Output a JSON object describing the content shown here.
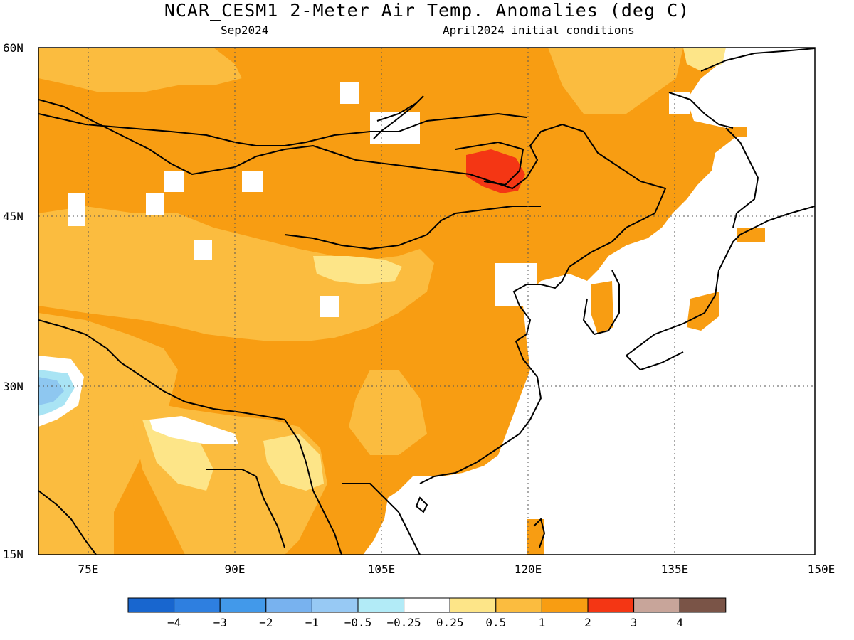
{
  "header": {
    "title": "NCAR_CESM1 2-Meter Air Temp. Anomalies (deg C)",
    "subtitle_left": "Sep2024",
    "subtitle_right": "April2024 initial conditions"
  },
  "map": {
    "lon_range": [
      70,
      150
    ],
    "lat_range": [
      15,
      60
    ],
    "lat_labels": [
      "15N",
      "30N",
      "45N",
      "60N"
    ],
    "lon_labels": [
      "75E",
      "90E",
      "105E",
      "120E",
      "135E",
      "150E"
    ],
    "fill_colors": {
      "light": "#fde588",
      "mid": "#fbbc3f",
      "strong": "#f89d12",
      "hot": "#f43614",
      "white": "#ffffff",
      "cool_light": "#a9e4f4",
      "cool": "#8ec7f0"
    }
  },
  "colorbar": {
    "colors": [
      "#1866cf",
      "#2e7fe0",
      "#4299ea",
      "#78b2ef",
      "#97c9f4",
      "#b2ebf7",
      "#ffffff",
      "#fde588",
      "#fbbc3f",
      "#f89d12",
      "#f43614",
      "#c8a59a",
      "#7a5447"
    ],
    "labels": [
      "-4",
      "-3",
      "-2",
      "-1",
      "-0.5",
      "-0.25",
      "0.25",
      "0.5",
      "1",
      "2",
      "3",
      "4"
    ]
  }
}
